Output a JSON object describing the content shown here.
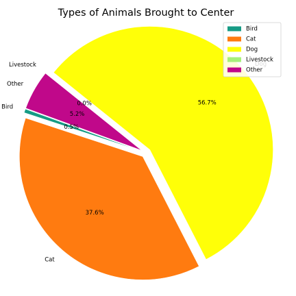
{
  "chart_data": {
    "type": "pie",
    "title": "Types of Animals Brought to Center",
    "categories": [
      "Bird",
      "Cat",
      "Dog",
      "Livestock",
      "Other"
    ],
    "values": [
      0.5,
      37.6,
      56.7,
      0.0,
      5.2
    ],
    "percent_labels": [
      "0.5%",
      "37.6%",
      "56.7%",
      "0.0%",
      "5.2%"
    ],
    "colors": [
      "#169b85",
      "#ff7b10",
      "#ffff08",
      "#a6f07a",
      "#c0088a"
    ],
    "exploded": true,
    "legend_placement": "top-right",
    "legend_entries": [
      "Bird",
      "Cat",
      "Dog",
      "Livestock",
      "Other"
    ]
  }
}
